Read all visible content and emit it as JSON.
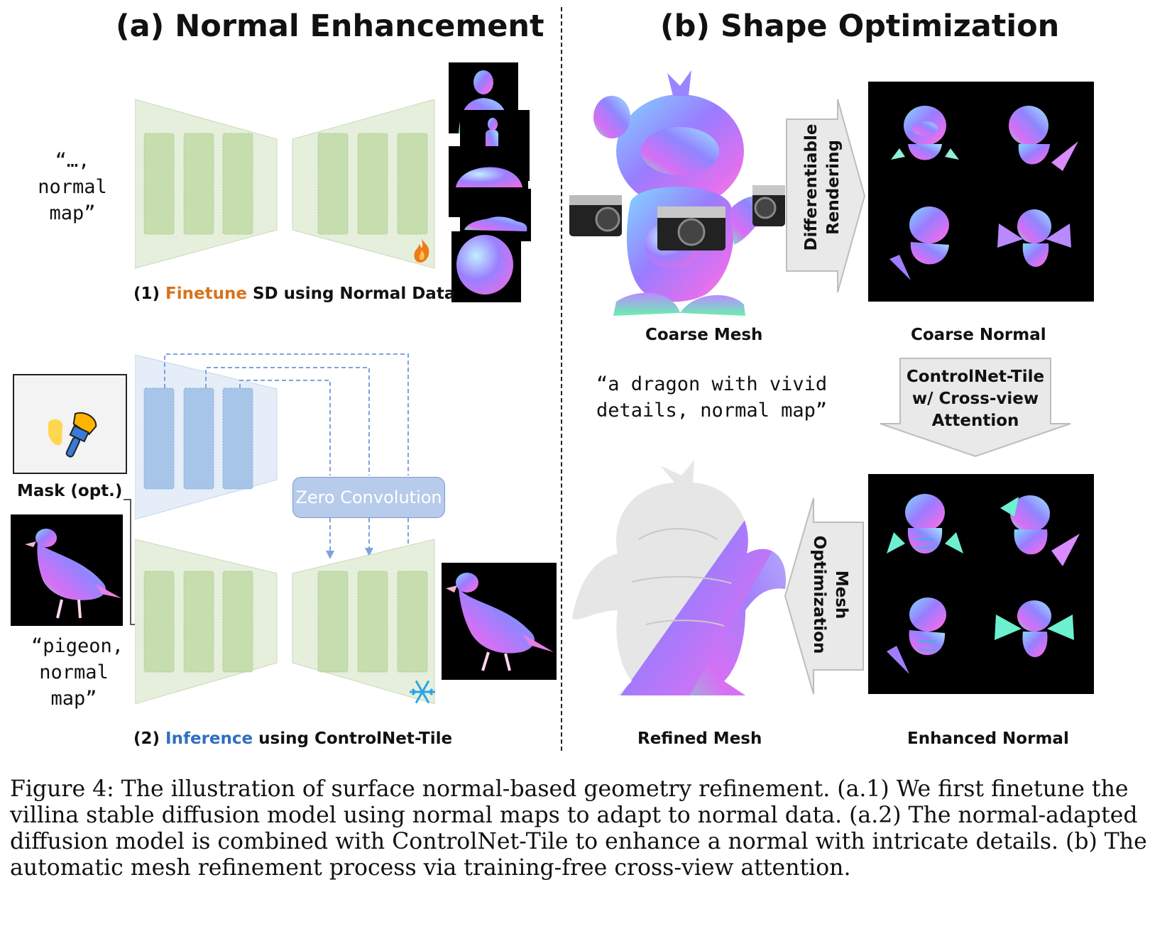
{
  "panel_a": {
    "title": "(a) Normal Enhancement",
    "prompt_1": [
      "“…,",
      "normal",
      "map”"
    ],
    "step1_prefix": "(1) ",
    "step1_highlight": "Finetune",
    "step1_suffix": " SD using Normal Data",
    "mask_label": "Mask (opt.)",
    "prompt_2": [
      "“pigeon,",
      "normal",
      "map”"
    ],
    "zero_conv_label": "Zero Convolution",
    "step2_prefix": "(2) ",
    "step2_highlight": "Inference",
    "step2_suffix": " using ControlNet-Tile",
    "fire_icon": "fire-icon",
    "snowflake_icon": "snowflake-icon",
    "brush_icon": "paint-brush-icon"
  },
  "panel_b": {
    "title": "(b) Shape Optimization",
    "coarse_mesh_label": "Coarse Mesh",
    "coarse_normal_label": "Coarse Normal",
    "render_arrow": [
      "Differentiable",
      "Rendering"
    ],
    "prompt": [
      "“a dragon with vivid",
      "details, normal map”"
    ],
    "controlnet_arrow": [
      "ControlNet-Tile",
      "w/ Cross-view",
      "Attention"
    ],
    "mesh_opt_arrow": [
      "Mesh",
      "Optimization"
    ],
    "refined_mesh_label": "Refined Mesh",
    "enhanced_normal_label": "Enhanced Normal"
  },
  "caption": [
    "Figure 4:   The illustration of surface normal-based geometry refinement. (a.1) We first finetune the",
    "villina stable diffusion model using normal maps to adapt to normal data. (a.2) The normal-adapted",
    "diffusion model is combined with ControlNet-Tile to enhance a normal with intricate details. (b) The",
    "automatic mesh refinement process via training-free cross-view attention."
  ],
  "colors": {
    "unet_green": "#e6efdc",
    "block_green": "#c6deae",
    "unet_blue": "#e4edf8",
    "block_blue": "#a6c5e8",
    "arrow_gray": "#e9e9e9",
    "highlight_orange": "#d9731b",
    "highlight_blue": "#2f6fc1"
  }
}
